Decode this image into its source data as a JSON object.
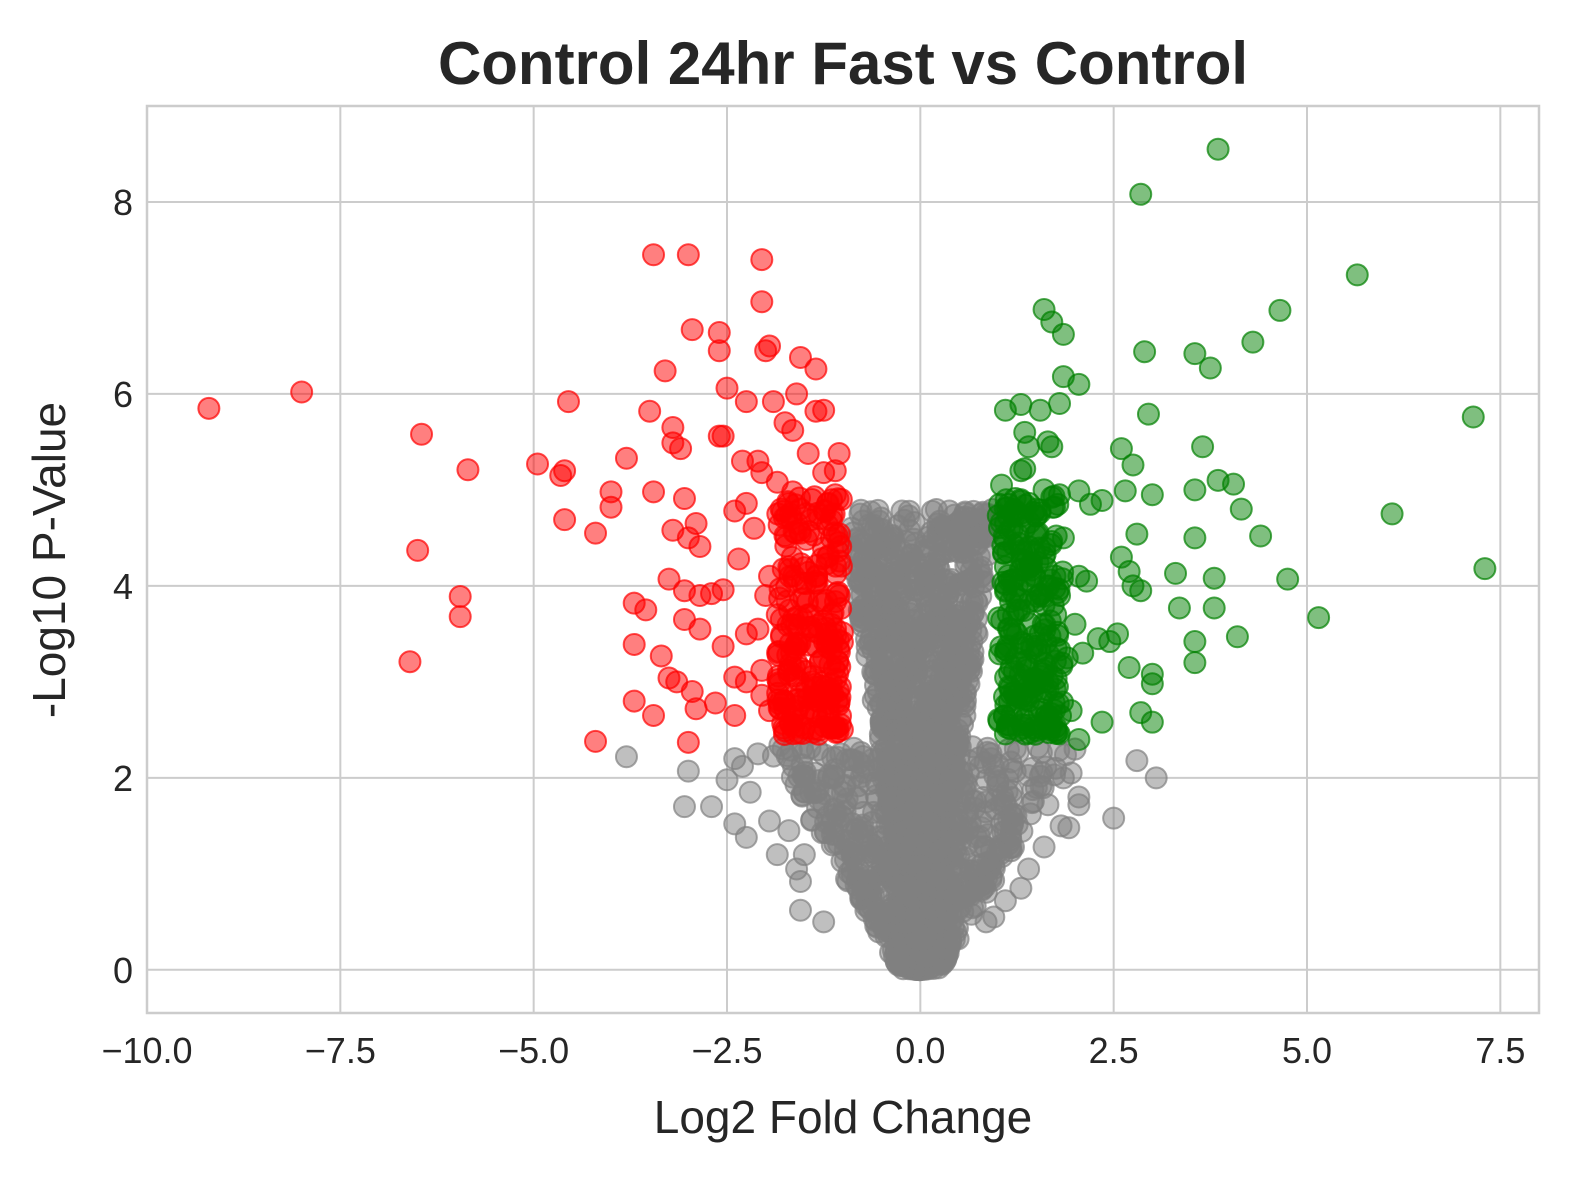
{
  "chart_data": {
    "type": "scatter",
    "title": "Control 24hr Fast vs Control",
    "xlabel": "Log2 Fold Change",
    "ylabel": "-Log10 P-Value",
    "xlim": [
      -10,
      8
    ],
    "ylim": [
      -0.45,
      9
    ],
    "xticks": [
      -10.0,
      -7.5,
      -5.0,
      -2.5,
      0.0,
      2.5,
      5.0,
      7.5
    ],
    "xtick_labels": [
      "−10.0",
      "−7.5",
      "−5.0",
      "−2.5",
      "0.0",
      "2.5",
      "5.0",
      "7.5"
    ],
    "yticks": [
      0,
      2,
      4,
      6,
      8
    ],
    "ytick_labels": [
      "0",
      "2",
      "4",
      "6",
      "8"
    ],
    "grid": true,
    "colors": {
      "down": "#ff0000",
      "up": "#008000",
      "ns": "#808080"
    },
    "series": [
      {
        "key": "ns",
        "color": "#808080",
        "points": [
          [
            -3.8,
            2.22
          ],
          [
            -3.0,
            2.07
          ],
          [
            -3.05,
            1.7
          ],
          [
            -2.7,
            1.7
          ],
          [
            -2.5,
            1.98
          ],
          [
            -2.4,
            1.52
          ],
          [
            -2.25,
            1.38
          ],
          [
            -2.4,
            2.2
          ],
          [
            -2.3,
            2.12
          ],
          [
            -2.2,
            1.85
          ],
          [
            -2.1,
            2.25
          ],
          [
            -1.95,
            1.55
          ],
          [
            -1.85,
            1.2
          ],
          [
            -1.7,
            1.45
          ],
          [
            -1.6,
            1.05
          ],
          [
            -1.55,
            0.92
          ],
          [
            -1.5,
            1.2
          ],
          [
            -1.55,
            0.62
          ],
          [
            -1.25,
            0.5
          ],
          [
            -1.35,
            1.85
          ],
          [
            -1.2,
            1.6
          ],
          [
            2.5,
            1.58
          ],
          [
            2.8,
            2.18
          ],
          [
            3.05,
            2.0
          ],
          [
            2.05,
            1.8
          ],
          [
            2.05,
            1.72
          ],
          [
            1.82,
            1.5
          ],
          [
            1.92,
            1.48
          ],
          [
            1.6,
            1.28
          ],
          [
            1.4,
            1.05
          ],
          [
            1.3,
            0.85
          ],
          [
            1.1,
            0.72
          ],
          [
            0.95,
            0.55
          ],
          [
            0.85,
            0.5
          ],
          [
            1.5,
            1.9
          ],
          [
            1.75,
            2.1
          ],
          [
            1.95,
            2.05
          ],
          [
            1.65,
            1.72
          ],
          [
            2.0,
            2.3
          ],
          [
            1.85,
            2.0
          ]
        ]
      },
      {
        "key": "down",
        "color": "#ff0000",
        "points": [
          [
            -9.2,
            5.85
          ],
          [
            -8.0,
            6.02
          ],
          [
            -6.45,
            5.58
          ],
          [
            -6.5,
            4.37
          ],
          [
            -5.85,
            5.21
          ],
          [
            -5.95,
            3.89
          ],
          [
            -5.95,
            3.68
          ],
          [
            -6.6,
            3.21
          ],
          [
            -4.95,
            5.27
          ],
          [
            -4.65,
            5.15
          ],
          [
            -4.6,
            5.2
          ],
          [
            -4.6,
            4.69
          ],
          [
            -4.55,
            5.92
          ],
          [
            -4.0,
            4.98
          ],
          [
            -4.0,
            4.82
          ],
          [
            -4.2,
            4.55
          ],
          [
            -3.8,
            5.33
          ],
          [
            -3.45,
            7.45
          ],
          [
            -3.0,
            7.45
          ],
          [
            -3.5,
            5.82
          ],
          [
            -3.45,
            4.98
          ],
          [
            -3.3,
            6.24
          ],
          [
            -3.2,
            5.65
          ],
          [
            -3.2,
            5.49
          ],
          [
            -3.1,
            5.43
          ],
          [
            -2.95,
            6.67
          ],
          [
            -2.6,
            6.64
          ],
          [
            -2.6,
            6.45
          ],
          [
            -3.25,
            4.07
          ],
          [
            -3.7,
            3.82
          ],
          [
            -3.55,
            3.75
          ],
          [
            -3.7,
            3.39
          ],
          [
            -3.35,
            3.27
          ],
          [
            -3.25,
            3.04
          ],
          [
            -3.15,
            3.0
          ],
          [
            -3.7,
            2.8
          ],
          [
            -3.45,
            2.65
          ],
          [
            -3.0,
            2.37
          ],
          [
            -4.2,
            2.38
          ],
          [
            -2.95,
            2.9
          ],
          [
            -2.9,
            2.72
          ],
          [
            -2.65,
            2.78
          ],
          [
            -2.4,
            2.65
          ],
          [
            -2.05,
            7.4
          ],
          [
            -2.05,
            6.96
          ],
          [
            -1.95,
            6.5
          ],
          [
            -2.0,
            6.45
          ],
          [
            -1.55,
            6.38
          ],
          [
            -1.35,
            6.26
          ],
          [
            -1.9,
            5.92
          ],
          [
            -1.75,
            5.7
          ],
          [
            -1.65,
            5.62
          ],
          [
            -1.6,
            6.0
          ],
          [
            -1.35,
            5.82
          ],
          [
            -1.25,
            5.83
          ],
          [
            -2.25,
            5.92
          ],
          [
            -2.5,
            6.06
          ],
          [
            -2.6,
            5.56
          ],
          [
            -2.55,
            5.56
          ],
          [
            -2.3,
            5.3
          ],
          [
            -2.1,
            5.3
          ],
          [
            -2.25,
            4.86
          ],
          [
            -2.4,
            4.78
          ],
          [
            -2.15,
            4.6
          ],
          [
            -3.05,
            4.91
          ],
          [
            -3.0,
            4.5
          ],
          [
            -2.9,
            4.65
          ],
          [
            -3.2,
            4.58
          ],
          [
            -2.85,
            4.41
          ],
          [
            -2.35,
            4.28
          ],
          [
            -3.05,
            3.95
          ],
          [
            -2.85,
            3.9
          ],
          [
            -2.7,
            3.92
          ],
          [
            -2.55,
            3.96
          ],
          [
            -3.05,
            3.65
          ],
          [
            -2.85,
            3.55
          ],
          [
            -2.55,
            3.37
          ],
          [
            -2.25,
            3.5
          ],
          [
            -2.1,
            3.55
          ],
          [
            -2.0,
            3.9
          ],
          [
            -2.4,
            3.05
          ],
          [
            -2.25,
            3.0
          ],
          [
            -2.05,
            3.12
          ],
          [
            -2.05,
            2.86
          ],
          [
            -1.95,
            2.7
          ],
          [
            -1.7,
            3.08
          ],
          [
            -1.75,
            2.72
          ],
          [
            -1.55,
            2.88
          ],
          [
            -1.75,
            2.49
          ],
          [
            -1.5,
            2.52
          ],
          [
            -1.3,
            2.5
          ],
          [
            -1.1,
            2.52
          ],
          [
            -1.2,
            4.3
          ],
          [
            -1.3,
            4.7
          ],
          [
            -1.1,
            4.95
          ],
          [
            -1.05,
            5.38
          ],
          [
            -1.25,
            5.18
          ],
          [
            -1.45,
            5.38
          ],
          [
            -1.65,
            4.98
          ],
          [
            -1.85,
            5.08
          ],
          [
            -2.05,
            5.18
          ],
          [
            -1.8,
            4.8
          ],
          [
            -1.55,
            4.55
          ],
          [
            -1.35,
            4.05
          ],
          [
            -1.45,
            3.7
          ],
          [
            -1.15,
            3.6
          ],
          [
            -1.25,
            3.25
          ],
          [
            -1.6,
            3.4
          ],
          [
            -1.85,
            3.7
          ],
          [
            -1.7,
            4.2
          ],
          [
            -1.95,
            4.1
          ],
          [
            -1.2,
            2.9
          ],
          [
            -1.4,
            3.0
          ],
          [
            -1.05,
            3.9
          ],
          [
            -1.15,
            4.5
          ],
          [
            -1.4,
            4.9
          ],
          [
            -1.1,
            5.2
          ],
          [
            -1.6,
            3.2
          ],
          [
            -1.3,
            3.5
          ]
        ]
      },
      {
        "key": "up",
        "color": "#008000",
        "points": [
          [
            3.85,
            8.55
          ],
          [
            2.85,
            8.08
          ],
          [
            5.65,
            7.24
          ],
          [
            4.65,
            6.87
          ],
          [
            4.3,
            6.54
          ],
          [
            3.55,
            6.42
          ],
          [
            3.75,
            6.27
          ],
          [
            2.9,
            6.44
          ],
          [
            7.15,
            5.76
          ],
          [
            2.95,
            5.79
          ],
          [
            1.6,
            6.88
          ],
          [
            1.7,
            6.75
          ],
          [
            1.85,
            6.62
          ],
          [
            1.85,
            6.18
          ],
          [
            2.05,
            6.1
          ],
          [
            1.8,
            5.9
          ],
          [
            1.55,
            5.83
          ],
          [
            1.1,
            5.83
          ],
          [
            1.3,
            5.89
          ],
          [
            1.35,
            5.6
          ],
          [
            1.4,
            5.45
          ],
          [
            1.65,
            5.5
          ],
          [
            1.7,
            5.45
          ],
          [
            1.3,
            5.2
          ],
          [
            1.35,
            5.22
          ],
          [
            1.05,
            5.05
          ],
          [
            1.6,
            5.0
          ],
          [
            1.8,
            4.95
          ],
          [
            2.05,
            4.99
          ],
          [
            2.2,
            4.85
          ],
          [
            2.35,
            4.89
          ],
          [
            2.6,
            5.43
          ],
          [
            2.75,
            5.26
          ],
          [
            2.65,
            4.99
          ],
          [
            3.0,
            4.95
          ],
          [
            3.55,
            5.0
          ],
          [
            3.65,
            5.45
          ],
          [
            3.85,
            5.1
          ],
          [
            4.05,
            5.06
          ],
          [
            4.15,
            4.8
          ],
          [
            4.4,
            4.52
          ],
          [
            3.55,
            4.5
          ],
          [
            2.8,
            4.54
          ],
          [
            2.6,
            4.3
          ],
          [
            2.7,
            4.15
          ],
          [
            2.75,
            4.0
          ],
          [
            2.85,
            3.95
          ],
          [
            3.3,
            4.13
          ],
          [
            3.8,
            4.08
          ],
          [
            4.75,
            4.07
          ],
          [
            6.1,
            4.75
          ],
          [
            7.3,
            4.18
          ],
          [
            3.35,
            3.77
          ],
          [
            3.8,
            3.77
          ],
          [
            3.55,
            3.42
          ],
          [
            3.55,
            3.2
          ],
          [
            4.1,
            3.47
          ],
          [
            5.15,
            3.67
          ],
          [
            2.55,
            3.5
          ],
          [
            2.45,
            3.42
          ],
          [
            2.7,
            3.15
          ],
          [
            2.3,
            3.45
          ],
          [
            2.1,
            3.3
          ],
          [
            3.0,
            3.08
          ],
          [
            3.0,
            2.98
          ],
          [
            2.85,
            2.68
          ],
          [
            3.0,
            2.58
          ],
          [
            2.35,
            2.58
          ],
          [
            2.05,
            2.4
          ],
          [
            1.95,
            2.7
          ],
          [
            1.65,
            2.62
          ],
          [
            1.4,
            2.55
          ],
          [
            1.15,
            2.55
          ],
          [
            1.15,
            2.95
          ],
          [
            1.3,
            3.2
          ],
          [
            1.45,
            3.35
          ],
          [
            1.55,
            3.5
          ],
          [
            1.25,
            3.75
          ],
          [
            1.45,
            4.0
          ],
          [
            1.6,
            4.3
          ],
          [
            1.35,
            4.6
          ],
          [
            1.2,
            4.75
          ],
          [
            1.1,
            4.2
          ],
          [
            1.75,
            3.7
          ],
          [
            1.9,
            3.25
          ],
          [
            2.05,
            4.1
          ],
          [
            1.85,
            4.5
          ],
          [
            2.15,
            4.05
          ],
          [
            1.65,
            3.0
          ],
          [
            1.4,
            2.8
          ],
          [
            1.25,
            3.5
          ],
          [
            1.5,
            4.8
          ],
          [
            1.8,
            3.9
          ],
          [
            2.0,
            3.6
          ],
          [
            1.1,
            3.3
          ],
          [
            1.35,
            4.35
          ],
          [
            1.6,
            3.8
          ],
          [
            1.15,
            4.05
          ]
        ]
      }
    ]
  }
}
